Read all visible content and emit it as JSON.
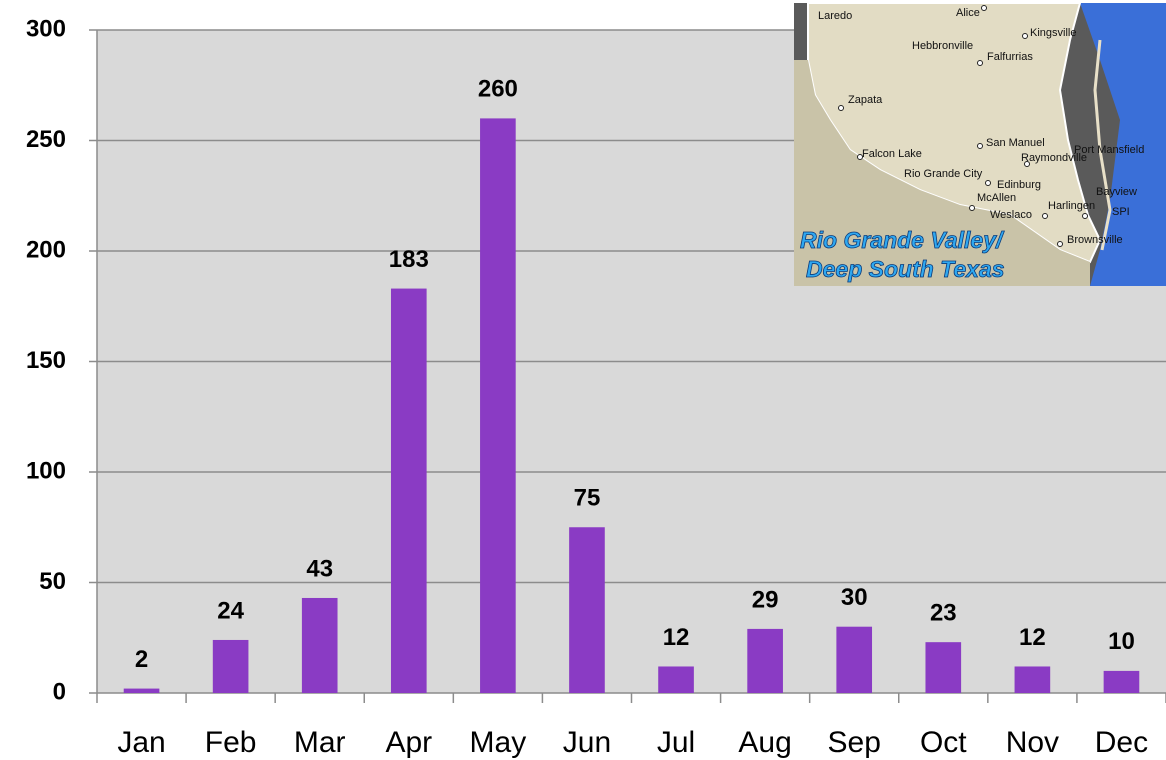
{
  "chart_data": {
    "type": "bar",
    "categories": [
      "Jan",
      "Feb",
      "Mar",
      "Apr",
      "May",
      "Jun",
      "Jul",
      "Aug",
      "Sep",
      "Oct",
      "Nov",
      "Dec"
    ],
    "values": [
      2,
      24,
      43,
      183,
      260,
      75,
      12,
      29,
      30,
      23,
      12,
      10
    ],
    "color": "#8a3bc4",
    "ylim": [
      0,
      300
    ],
    "yticks": [
      0,
      50,
      100,
      150,
      200,
      250,
      300
    ],
    "grid": true
  },
  "inset_map": {
    "labels": [
      "Laredo",
      "Alice",
      "Kingsville",
      "Hebbronville",
      "Falfurrias",
      "Zapata",
      "San Manuel",
      "Falcon Lake",
      "Port Mansfield",
      "Raymondville",
      "Rio Grande City",
      "Edinburg",
      "McAllen",
      "Harlingen",
      "Bayview",
      "Weslaco",
      "SPI",
      "Brownsville"
    ],
    "caption": [
      "Rio Grande Valley/",
      "Deep South Texas"
    ]
  }
}
